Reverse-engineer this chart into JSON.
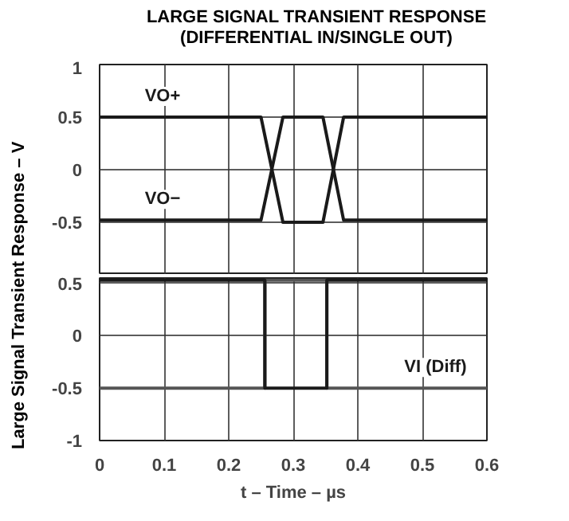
{
  "chart_data": [
    {
      "type": "line",
      "title": "LARGE SIGNAL TRANSIENT RESPONSE\n(DIFFERENTIAL IN/SINGLE OUT)",
      "ylabel": "Large Signal Transient Response – V",
      "xlim": [
        0,
        0.6
      ],
      "xticks": [
        0,
        0.1,
        0.2,
        0.3,
        0.4,
        0.5,
        0.6
      ],
      "ylim": [
        -1,
        1
      ],
      "yticks": [
        1,
        0.5,
        0,
        -0.5,
        {
          "value": -1,
          "label": null
        }
      ],
      "grid": true,
      "tick_labels": "y",
      "marker": "none",
      "line_style": "solid",
      "series": [
        {
          "name": "VO+",
          "color": "#1a1a1a",
          "x": [
            0,
            0.25,
            0.284,
            0.346,
            0.378,
            0.6
          ],
          "values": [
            0.5,
            0.5,
            -0.5,
            -0.5,
            0.5,
            0.5
          ]
        },
        {
          "name": "VO−",
          "color": "#1a1a1a",
          "x": [
            0,
            0.25,
            0.284,
            0.346,
            0.378,
            0.6
          ],
          "values": [
            -0.48,
            -0.48,
            0.5,
            0.5,
            -0.48,
            -0.48
          ]
        }
      ]
    },
    {
      "type": "line",
      "xlabel": "t – Time – µs",
      "xlim": [
        0,
        0.6
      ],
      "xticks": [
        0,
        0.1,
        0.2,
        0.3,
        0.4,
        0.5,
        0.6
      ],
      "ylim": [
        -1,
        0.55
      ],
      "yticks": [
        0.5,
        0,
        -0.5,
        -1
      ],
      "grid": true,
      "marker": "none",
      "line_style": "solid",
      "series": [
        {
          "color": "#555555",
          "x": [
            0,
            0.256,
            0.256,
            0.352,
            0.352,
            0.6
          ],
          "values": [
            -0.5,
            -0.5,
            0.53,
            0.53,
            -0.5,
            -0.5
          ]
        },
        {
          "name": "VI (Diff)",
          "color": "#1a1a1a",
          "x": [
            0,
            0.256,
            0.256,
            0.352,
            0.352,
            0.6
          ],
          "values": [
            0.53,
            0.53,
            -0.5,
            -0.5,
            0.53,
            0.53
          ]
        }
      ]
    }
  ]
}
